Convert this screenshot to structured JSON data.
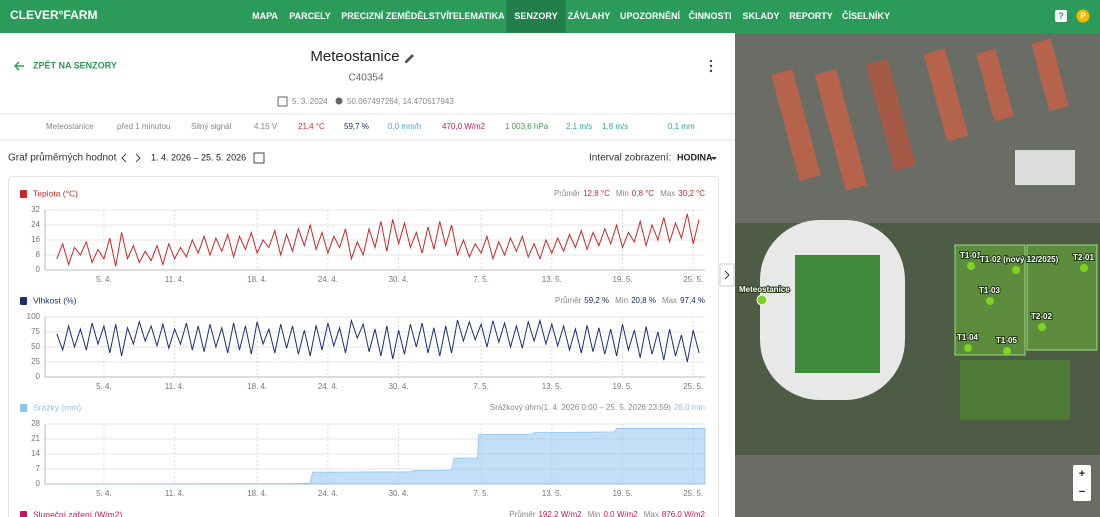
{
  "nav": {
    "logo": "CLEVER°FARM",
    "items": [
      "MAPA",
      "PARCELY",
      "PRECIZNÍ ZEMĚDĚLSTVÍ",
      "TELEMATIKA",
      "SENZORY",
      "ZÁVLAHY",
      "UPOZORNĚNÍ",
      "ČINNOSTI",
      "SKLADY",
      "REPORTY",
      "ČÍSELNÍKY"
    ],
    "active": "SENZORY",
    "help": "?",
    "user": "P"
  },
  "header": {
    "back": "ZPĚT NA SENZORY",
    "title": "Meteostanice",
    "code": "C40354",
    "date": "5. 3. 2024",
    "coords": "50.067497264, 14.470517943"
  },
  "status": [
    "Meteostanice",
    "před 1 minutou",
    "Silný signál",
    "4.15 V",
    "21,4 °C",
    "59,7 %",
    "0,0 mm/h",
    "470,0 W/m2",
    "1 003,6 hPa",
    "2,1 m/s",
    "1,8 m/s",
    "0,1 mm"
  ],
  "controls": {
    "label": "Graf průměrných hodnot",
    "range": "1. 4. 2026 – 25. 5. 2026",
    "interval_label": "Interval zobrazení:",
    "interval": "HODINA"
  },
  "chart_data": [
    {
      "type": "line",
      "title": "Teplota (°C)",
      "color": "#c62828",
      "summary": [
        {
          "label": "Průměr",
          "value": "12,8 °C"
        },
        {
          "label": "Min",
          "value": "0,8 °C"
        },
        {
          "label": "Max",
          "value": "30,2 °C"
        }
      ],
      "xlim": [
        -1,
        55
      ],
      "xticks": [
        {
          "value": 4,
          "label": "5. 4."
        },
        {
          "value": 10,
          "label": "11. 4."
        },
        {
          "value": 17,
          "label": "18. 4."
        },
        {
          "value": 23,
          "label": "24. 4."
        },
        {
          "value": 29,
          "label": "30. 4."
        },
        {
          "value": 36,
          "label": "7. 5."
        },
        {
          "value": 42,
          "label": "13. 5."
        },
        {
          "value": 48,
          "label": "19. 5."
        },
        {
          "value": 54,
          "label": "25. 5."
        }
      ],
      "ylim": [
        0,
        32
      ],
      "yticks": [
        0,
        8,
        16,
        24,
        32
      ],
      "grid": true,
      "x": [
        0,
        0.5,
        1,
        1.5,
        2,
        2.5,
        3,
        3.5,
        4,
        4.5,
        5,
        5.5,
        6,
        6.5,
        7,
        7.5,
        8,
        8.5,
        9,
        9.5,
        10,
        10.5,
        11,
        11.5,
        12,
        12.5,
        13,
        13.5,
        14,
        14.5,
        15,
        15.5,
        16,
        16.5,
        17,
        17.5,
        18,
        18.5,
        19,
        19.5,
        20,
        20.5,
        21,
        21.5,
        22,
        22.5,
        23,
        23.5,
        24,
        24.5,
        25,
        25.5,
        26,
        26.5,
        27,
        27.5,
        28,
        28.5,
        29,
        29.5,
        30,
        30.5,
        31,
        31.5,
        32,
        32.5,
        33,
        33.5,
        34,
        34.5,
        35,
        35.5,
        36,
        36.5,
        37,
        37.5,
        38,
        38.5,
        39,
        39.5,
        40,
        40.5,
        41,
        41.5,
        42,
        42.5,
        43,
        43.5,
        44,
        44.5,
        45,
        45.5,
        46,
        46.5,
        47,
        47.5,
        48,
        48.5,
        49,
        49.5,
        50,
        50.5,
        51,
        51.5,
        52,
        52.5,
        53,
        53.5,
        54,
        54.5
      ],
      "values": [
        6,
        14,
        3,
        12,
        8,
        15,
        4,
        11,
        6,
        17,
        2,
        20,
        6,
        13,
        4,
        10,
        5,
        13,
        3,
        14,
        6,
        12,
        7,
        16,
        9,
        18,
        8,
        17,
        10,
        19,
        7,
        18,
        11,
        20,
        9,
        16,
        12,
        21,
        8,
        19,
        10,
        22,
        13,
        24,
        11,
        20,
        9,
        18,
        12,
        22,
        6,
        15,
        8,
        22,
        12,
        26,
        10,
        27,
        14,
        25,
        12,
        20,
        9,
        23,
        11,
        26,
        13,
        24,
        8,
        16,
        7,
        14,
        9,
        18,
        6,
        15,
        8,
        17,
        10,
        18,
        7,
        14,
        6,
        16,
        9,
        17,
        10,
        19,
        12,
        21,
        11,
        20,
        13,
        22,
        14,
        24,
        12,
        20,
        15,
        26,
        13,
        24,
        16,
        28,
        15,
        25,
        17,
        30,
        14,
        27
      ]
    },
    {
      "type": "line",
      "title": "Vlhkost (%)",
      "color": "#1a3170",
      "summary": [
        {
          "label": "Průměr",
          "value": "59,2 %"
        },
        {
          "label": "Min",
          "value": "20,8 %"
        },
        {
          "label": "Max",
          "value": "97,4 %"
        }
      ],
      "xlim": [
        -1,
        55
      ],
      "xticks": [
        {
          "value": 4,
          "label": "5. 4."
        },
        {
          "value": 10,
          "label": "11. 4."
        },
        {
          "value": 17,
          "label": "18. 4."
        },
        {
          "value": 23,
          "label": "24. 4."
        },
        {
          "value": 29,
          "label": "30. 4."
        },
        {
          "value": 36,
          "label": "7. 5."
        },
        {
          "value": 42,
          "label": "13. 5."
        },
        {
          "value": 48,
          "label": "19. 5."
        },
        {
          "value": 54,
          "label": "25. 5."
        }
      ],
      "ylim": [
        0,
        100
      ],
      "yticks": [
        0,
        25,
        50,
        75,
        100
      ],
      "grid": true,
      "x": [
        0,
        0.5,
        1,
        1.5,
        2,
        2.5,
        3,
        3.5,
        4,
        4.5,
        5,
        5.5,
        6,
        6.5,
        7,
        7.5,
        8,
        8.5,
        9,
        9.5,
        10,
        10.5,
        11,
        11.5,
        12,
        12.5,
        13,
        13.5,
        14,
        14.5,
        15,
        15.5,
        16,
        16.5,
        17,
        17.5,
        18,
        18.5,
        19,
        19.5,
        20,
        20.5,
        21,
        21.5,
        22,
        22.5,
        23,
        23.5,
        24,
        24.5,
        25,
        25.5,
        26,
        26.5,
        27,
        27.5,
        28,
        28.5,
        29,
        29.5,
        30,
        30.5,
        31,
        31.5,
        32,
        32.5,
        33,
        33.5,
        34,
        34.5,
        35,
        35.5,
        36,
        36.5,
        37,
        37.5,
        38,
        38.5,
        39,
        39.5,
        40,
        40.5,
        41,
        41.5,
        42,
        42.5,
        43,
        43.5,
        44,
        44.5,
        45,
        45.5,
        46,
        46.5,
        47,
        47.5,
        48,
        48.5,
        49,
        49.5,
        50,
        50.5,
        51,
        51.5,
        52,
        52.5,
        53,
        53.5,
        54,
        54.5
      ],
      "values": [
        72,
        45,
        85,
        50,
        80,
        45,
        90,
        55,
        85,
        40,
        88,
        35,
        82,
        55,
        92,
        60,
        85,
        52,
        88,
        48,
        80,
        55,
        90,
        45,
        85,
        42,
        88,
        50,
        82,
        40,
        90,
        45,
        85,
        38,
        92,
        55,
        80,
        40,
        88,
        48,
        85,
        38,
        78,
        35,
        86,
        45,
        90,
        52,
        82,
        40,
        94,
        65,
        88,
        42,
        80,
        35,
        85,
        30,
        78,
        38,
        88,
        50,
        90,
        40,
        82,
        35,
        85,
        40,
        95,
        60,
        92,
        62,
        88,
        50,
        94,
        58,
        90,
        50,
        85,
        48,
        92,
        60,
        94,
        55,
        88,
        52,
        85,
        45,
        80,
        40,
        86,
        42,
        82,
        38,
        80,
        35,
        88,
        45,
        78,
        32,
        84,
        38,
        75,
        28,
        80,
        35,
        70,
        25,
        78,
        40
      ]
    },
    {
      "type": "area",
      "title": "Srážky (mm)",
      "color": "#90c4f0",
      "summary": [
        {
          "label": "Srážkový úhrn(1. 4. 2026 0:00 – 25. 5. 2026 23:59)",
          "value": "26,0 mm"
        }
      ],
      "xlim": [
        -1,
        55
      ],
      "xticks": [
        {
          "value": 4,
          "label": "5. 4."
        },
        {
          "value": 10,
          "label": "11. 4."
        },
        {
          "value": 17,
          "label": "18. 4."
        },
        {
          "value": 23,
          "label": "24. 4."
        },
        {
          "value": 29,
          "label": "30. 4."
        },
        {
          "value": 36,
          "label": "7. 5."
        },
        {
          "value": 42,
          "label": "13. 5."
        },
        {
          "value": 48,
          "label": "19. 5."
        },
        {
          "value": 54,
          "label": "25. 5."
        }
      ],
      "ylim": [
        0,
        28
      ],
      "yticks": [
        0,
        7,
        14,
        21,
        28
      ],
      "grid": true,
      "x": [
        0,
        20,
        21.5,
        21.7,
        30,
        30.3,
        33.5,
        33.7,
        35.7,
        35.8,
        40.3,
        40.5,
        47.3,
        47.5,
        55
      ],
      "values": [
        0,
        0.2,
        0.4,
        5.5,
        5.7,
        6.3,
        6.5,
        12,
        12.2,
        23,
        23.3,
        24,
        24.3,
        26,
        26
      ]
    },
    {
      "type": "line",
      "title": "Sluneční záření (W/m2)",
      "color": "#c2185b",
      "summary": [
        {
          "label": "Průměr",
          "value": "192,2 W/m2"
        },
        {
          "label": "Min",
          "value": "0,0 W/m2"
        },
        {
          "label": "Max",
          "value": "876,0 W/m2"
        }
      ]
    }
  ],
  "map": {
    "labels": [
      "Meteostanice",
      "T1-01",
      "T1-02 (nový 12/2025)",
      "T2-01",
      "T1-03",
      "T2-02",
      "T1-04",
      "T1-05"
    ],
    "zoom": [
      "+",
      "−"
    ]
  }
}
